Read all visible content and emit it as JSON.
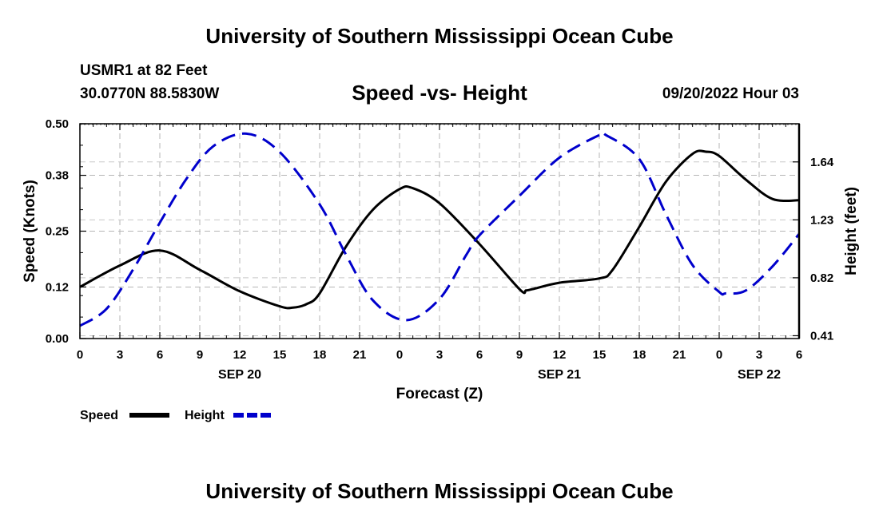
{
  "header": {
    "title": "University of Southern Mississippi Ocean Cube",
    "station": "USMR1 at 82 Feet",
    "coordinates": "30.0770N  88.5830W",
    "subtitle": "Speed -vs- Height",
    "datetime": "09/20/2022 Hour 03"
  },
  "footer": {
    "title": "University of Southern Mississippi Ocean Cube"
  },
  "chart_data": {
    "type": "line",
    "title": "Speed -vs- Height",
    "xlabel": "Forecast (Z)",
    "ylabel": "Speed (Knots)",
    "y2label": "Height (feet)",
    "x_unit": "hours since SEP 20 00Z",
    "xlim": [
      0,
      54
    ],
    "ylim": [
      0,
      0.5
    ],
    "y2lim": [
      0.39,
      1.91
    ],
    "grid": true,
    "x_ticks": [
      0,
      3,
      6,
      9,
      12,
      15,
      18,
      21,
      24,
      27,
      30,
      33,
      36,
      39,
      42,
      45,
      48,
      51,
      54
    ],
    "x_tick_labels": [
      "0",
      "3",
      "6",
      "9",
      "12",
      "15",
      "18",
      "21",
      "0",
      "3",
      "6",
      "9",
      "12",
      "15",
      "18",
      "21",
      "0",
      "3",
      "6"
    ],
    "day_labels": [
      {
        "hour": 12,
        "label": "SEP 20"
      },
      {
        "hour": 36,
        "label": "SEP 21"
      },
      {
        "hour": 51,
        "label": "SEP 22"
      }
    ],
    "y_ticks": [
      0.0,
      0.12,
      0.25,
      0.38,
      0.5
    ],
    "y_tick_labels": [
      "0.00",
      "0.12",
      "0.25",
      "0.38",
      "0.50"
    ],
    "y2_ticks": [
      0.41,
      0.82,
      1.23,
      1.64
    ],
    "y2_tick_labels": [
      "0.41",
      "0.82",
      "1.23",
      "1.64"
    ],
    "legend": [
      {
        "name": "Speed",
        "color": "#000000",
        "dash": "solid"
      },
      {
        "name": "Height",
        "color": "#0000cc",
        "dash": "dashed"
      }
    ],
    "legend_position": "bottom-left",
    "series": [
      {
        "name": "Speed",
        "axis": "left",
        "color": "#000000",
        "x": [
          0,
          3,
          6,
          9,
          12,
          15,
          16,
          17,
          18,
          20,
          22,
          24,
          25,
          27,
          30,
          33,
          33.5,
          34,
          36,
          39,
          40,
          42,
          44,
          46,
          47,
          48,
          50,
          52,
          54
        ],
        "y": [
          0.12,
          0.17,
          0.205,
          0.16,
          0.11,
          0.075,
          0.072,
          0.08,
          0.105,
          0.215,
          0.3,
          0.348,
          0.35,
          0.315,
          0.22,
          0.115,
          0.112,
          0.115,
          0.13,
          0.14,
          0.16,
          0.26,
          0.365,
          0.43,
          0.435,
          0.425,
          0.37,
          0.325,
          0.322
        ]
      },
      {
        "name": "Height",
        "axis": "right",
        "color": "#0000cc",
        "x": [
          0,
          2,
          4,
          6,
          8,
          10,
          12.5,
          15,
          18,
          20,
          22,
          24.5,
          27,
          29,
          30,
          33,
          36,
          39,
          39.5,
          42,
          44,
          46,
          48,
          48.5,
          50,
          52,
          54
        ],
        "y": [
          0.48,
          0.6,
          0.88,
          1.21,
          1.52,
          1.75,
          1.84,
          1.71,
          1.34,
          0.98,
          0.66,
          0.52,
          0.67,
          0.98,
          1.12,
          1.4,
          1.67,
          1.83,
          1.83,
          1.66,
          1.27,
          0.91,
          0.72,
          0.71,
          0.73,
          0.9,
          1.13
        ]
      }
    ]
  }
}
